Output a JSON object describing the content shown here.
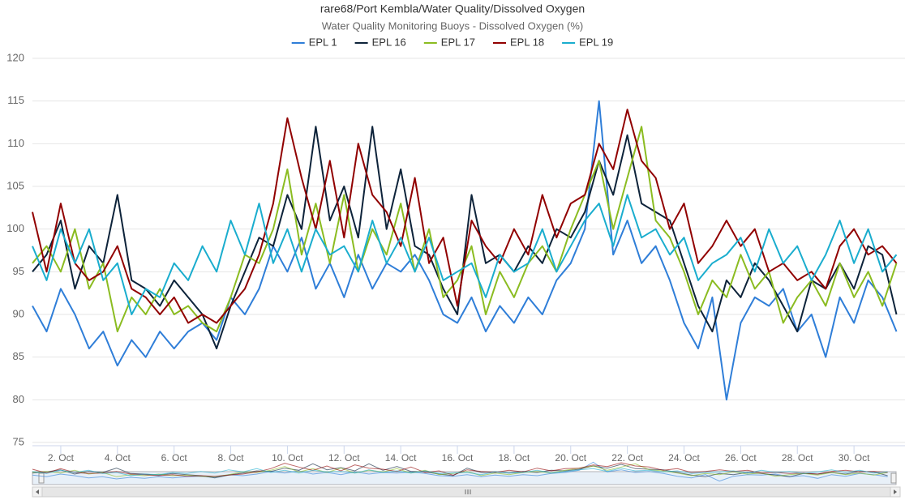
{
  "chart_data": {
    "type": "line",
    "title": "rare68/Port Kembla/Water Quality/Dissolved Oxygen",
    "subtitle": "Water Quality Monitoring Buoys - Dissolved Oxygen (%)",
    "x": [
      1,
      1.5,
      2,
      2.5,
      3,
      3.5,
      4,
      4.5,
      5,
      5.5,
      6,
      6.5,
      7,
      7.5,
      8,
      8.5,
      9,
      9.5,
      10,
      10.5,
      11,
      11.5,
      12,
      12.5,
      13,
      13.5,
      14,
      14.5,
      15,
      15.5,
      16,
      16.5,
      17,
      17.5,
      18,
      18.5,
      19,
      19.5,
      20,
      20.5,
      21,
      21.5,
      22,
      22.5,
      23,
      23.5,
      24,
      24.5,
      25,
      25.5,
      26,
      26.5,
      27,
      27.5,
      28,
      28.5,
      29,
      29.5,
      30,
      30.5,
      31,
      31.5
    ],
    "xlim": [
      1,
      31.8
    ],
    "xticks": [
      {
        "value": 2,
        "label": "2. Oct"
      },
      {
        "value": 4,
        "label": "4. Oct"
      },
      {
        "value": 6,
        "label": "6. Oct"
      },
      {
        "value": 8,
        "label": "8. Oct"
      },
      {
        "value": 10,
        "label": "10. Oct"
      },
      {
        "value": 12,
        "label": "12. Oct"
      },
      {
        "value": 14,
        "label": "14. Oct"
      },
      {
        "value": 16,
        "label": "16. Oct"
      },
      {
        "value": 18,
        "label": "18. Oct"
      },
      {
        "value": 20,
        "label": "20. Oct"
      },
      {
        "value": 22,
        "label": "22. Oct"
      },
      {
        "value": 24,
        "label": "24. Oct"
      },
      {
        "value": 26,
        "label": "26. Oct"
      },
      {
        "value": 28,
        "label": "28. Oct"
      },
      {
        "value": 30,
        "label": "30. Oct"
      }
    ],
    "ylim": [
      75,
      120
    ],
    "yticks": [
      75,
      80,
      85,
      90,
      95,
      100,
      105,
      110,
      115,
      120
    ],
    "grid": true,
    "series": [
      {
        "name": "EPL 1",
        "color": "#2f7ed8",
        "values": [
          91,
          88,
          93,
          90,
          86,
          88,
          84,
          87,
          85,
          88,
          86,
          88,
          89,
          87,
          92,
          90,
          93,
          98,
          95,
          99,
          93,
          96,
          92,
          97,
          93,
          96,
          95,
          97,
          94,
          90,
          89,
          92,
          88,
          91,
          89,
          92,
          90,
          94,
          96,
          100,
          115,
          97,
          101,
          96,
          98,
          94,
          89,
          86,
          92,
          80,
          89,
          92,
          91,
          93,
          88,
          90,
          85,
          92,
          89,
          94,
          92,
          88
        ]
      },
      {
        "name": "EPL 16",
        "color": "#0d233a",
        "values": [
          95,
          97,
          101,
          93,
          98,
          96,
          104,
          94,
          93,
          91,
          94,
          92,
          90,
          86,
          91,
          95,
          99,
          98,
          104,
          100,
          112,
          101,
          105,
          99,
          112,
          100,
          107,
          98,
          97,
          93,
          90,
          104,
          96,
          97,
          95,
          98,
          96,
          100,
          99,
          102,
          108,
          104,
          111,
          103,
          102,
          101,
          96,
          91,
          88,
          94,
          92,
          96,
          94,
          91,
          88,
          94,
          93,
          96,
          93,
          98,
          97,
          90
        ]
      },
      {
        "name": "EPL 17",
        "color": "#8bbc21",
        "values": [
          96,
          98,
          95,
          100,
          93,
          96,
          88,
          92,
          90,
          93,
          90,
          91,
          89,
          88,
          92,
          97,
          96,
          100,
          107,
          97,
          103,
          96,
          104,
          95,
          100,
          97,
          103,
          95,
          100,
          92,
          94,
          98,
          90,
          95,
          92,
          96,
          98,
          95,
          100,
          104,
          108,
          100,
          106,
          112,
          101,
          99,
          95,
          90,
          94,
          92,
          97,
          93,
          95,
          89,
          92,
          94,
          91,
          96,
          92,
          95,
          91,
          96
        ]
      },
      {
        "name": "EPL 18",
        "color": "#910000",
        "values": [
          102,
          95,
          103,
          96,
          94,
          95,
          98,
          93,
          92,
          90,
          92,
          89,
          90,
          89,
          91,
          93,
          97,
          103,
          113,
          106,
          100,
          108,
          99,
          110,
          104,
          102,
          98,
          106,
          96,
          99,
          91,
          101,
          98,
          96,
          100,
          97,
          104,
          99,
          103,
          104,
          110,
          107,
          114,
          108,
          106,
          100,
          103,
          96,
          98,
          101,
          98,
          100,
          95,
          96,
          94,
          95,
          93,
          98,
          100,
          97,
          98,
          96
        ]
      },
      {
        "name": "EPL 19",
        "color": "#1aadce",
        "values": [
          98,
          94,
          100,
          96,
          100,
          94,
          96,
          90,
          93,
          92,
          96,
          94,
          98,
          95,
          101,
          97,
          103,
          96,
          100,
          95,
          100,
          97,
          98,
          95,
          101,
          96,
          99,
          95,
          99,
          94,
          95,
          96,
          92,
          97,
          95,
          96,
          100,
          95,
          98,
          101,
          103,
          98,
          104,
          99,
          100,
          97,
          99,
          94,
          96,
          97,
          99,
          95,
          100,
          96,
          98,
          94,
          97,
          101,
          96,
          100,
          95,
          97
        ]
      }
    ]
  }
}
